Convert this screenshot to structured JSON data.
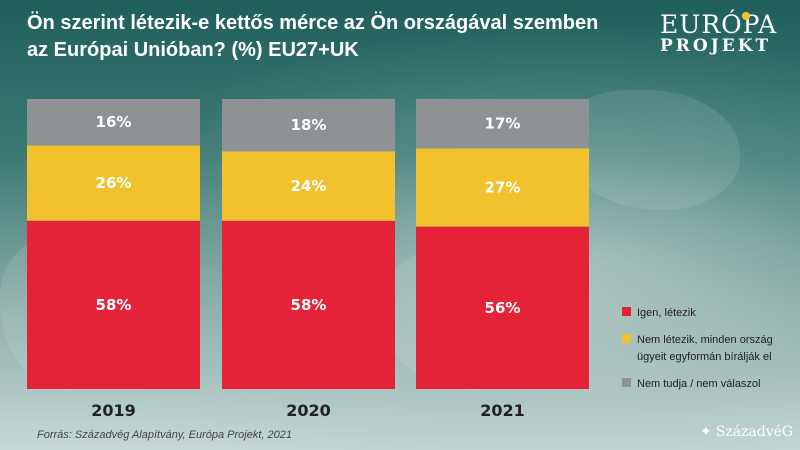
{
  "title_lines": [
    "Ön szerint létezik-e kettős mérce az Ön országával szemben",
    "az Európai Unióban? (%) EU27+UK"
  ],
  "logo": {
    "line1": "EURÓPA",
    "line2": "PROJEKT"
  },
  "colors": {
    "igen": "#e42338",
    "nem": "#f2c12e",
    "nt": "#8e9294",
    "year": "#222222"
  },
  "chart_data": {
    "type": "bar",
    "stacked": true,
    "categories": [
      "2019",
      "2020",
      "2021"
    ],
    "series": [
      {
        "name": "Igen, létezik",
        "values": [
          58,
          58,
          56
        ],
        "labels": [
          "58%",
          "58%",
          "56%"
        ],
        "color": "#e42338"
      },
      {
        "name": "Nem létezik, minden ország ügyeit egyformán bírálják el",
        "values": [
          26,
          24,
          27
        ],
        "labels": [
          "26%",
          "24%",
          "27%"
        ],
        "color": "#f2c12e"
      },
      {
        "name": "Nem tudja / nem válaszol",
        "values": [
          16,
          18,
          17
        ],
        "labels": [
          "16%",
          "18%",
          "17%"
        ],
        "color": "#8e9294"
      }
    ],
    "ylim": [
      0,
      100
    ],
    "legend_position": "bottom-right",
    "grid": false
  },
  "legend_items": [
    {
      "label": "Igen, létezik",
      "color": "#e42338"
    },
    {
      "label": "Nem létezik, minden ország ügyeit egyformán bírálják el",
      "color": "#f2c12e"
    },
    {
      "label": "Nem tudja / nem válaszol",
      "color": "#8e9294"
    }
  ],
  "source": "Forrás: Századvég Alapítvány, Európa Projekt, 2021",
  "brand": {
    "icon": "compass-star-icon",
    "label": "SzázadvéG"
  }
}
